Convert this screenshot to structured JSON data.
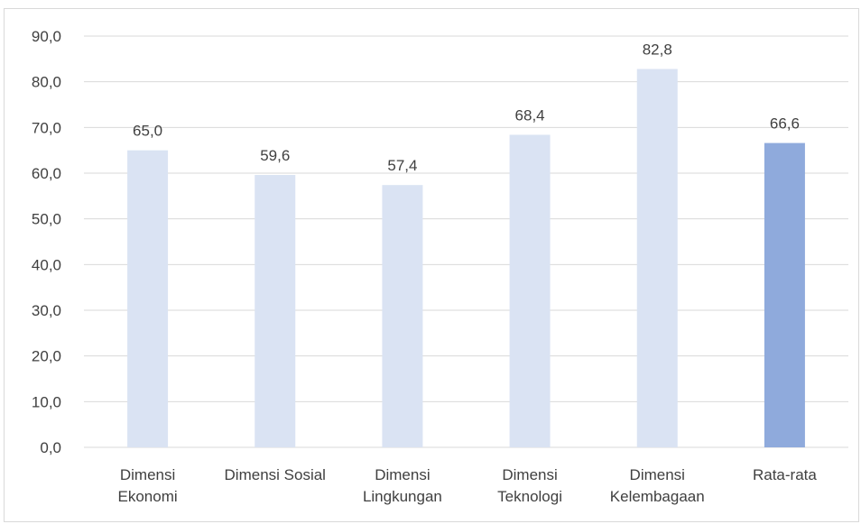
{
  "chart_data": {
    "type": "bar",
    "categories": [
      [
        "Dimensi",
        "Ekonomi"
      ],
      [
        "Dimensi Sosial"
      ],
      [
        "Dimensi",
        "Lingkungan"
      ],
      [
        "Dimensi",
        "Teknologi"
      ],
      [
        "Dimensi",
        "Kelembagaan"
      ],
      [
        "Rata-rata"
      ]
    ],
    "values": [
      65.0,
      59.6,
      57.4,
      68.4,
      82.8,
      66.6
    ],
    "data_labels": [
      "65,0",
      "59,6",
      "57,4",
      "68,4",
      "82,8",
      "66,6"
    ],
    "ylim": [
      0,
      90
    ],
    "yticks": [
      0,
      10,
      20,
      30,
      40,
      50,
      60,
      70,
      80,
      90
    ],
    "ytick_labels": [
      "0,0",
      "10,0",
      "20,0",
      "30,0",
      "40,0",
      "50,0",
      "60,0",
      "70,0",
      "80,0",
      "90,0"
    ],
    "grid": true,
    "legend": "none",
    "colors": {
      "bar": "#dae3f3",
      "highlight_bar": "#8faadc",
      "grid": "#d9d9d9",
      "text": "#404040"
    },
    "highlight_index": 5
  }
}
